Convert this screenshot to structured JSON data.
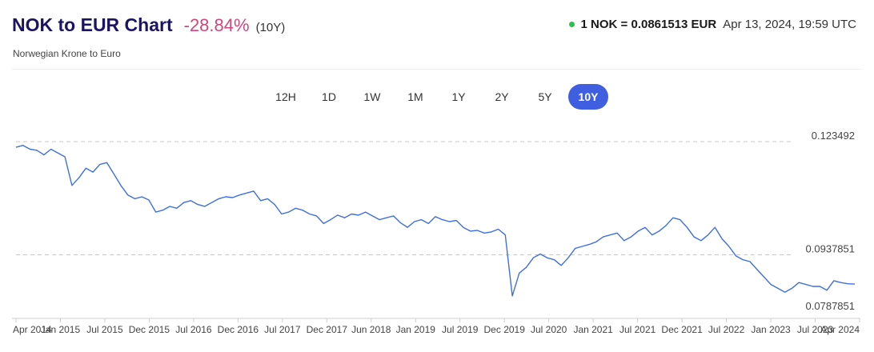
{
  "header": {
    "title": "NOK to EUR Chart",
    "change": "-28.84%",
    "period": "(10Y)",
    "subtitle": "Norwegian Krone to Euro"
  },
  "rate": {
    "value": "1 NOK = 0.0861513 EUR",
    "timestamp": "Apr 13, 2024, 19:59 UTC"
  },
  "ranges": [
    {
      "label": "12H",
      "active": false
    },
    {
      "label": "1D",
      "active": false
    },
    {
      "label": "1W",
      "active": false
    },
    {
      "label": "1M",
      "active": false
    },
    {
      "label": "1Y",
      "active": false
    },
    {
      "label": "2Y",
      "active": false
    },
    {
      "label": "5Y",
      "active": false
    },
    {
      "label": "10Y",
      "active": true
    }
  ],
  "colors": {
    "line": "#3f6fe0",
    "accent": "#3f5fe0",
    "negative": "#c2185b",
    "live_dot": "#2fbf4a"
  },
  "chart_data": {
    "type": "line",
    "title": "NOK to EUR Chart",
    "y_reference_lines": [
      0.123492,
      0.0937851,
      0.0787851
    ],
    "y_labels": [
      "0.123492",
      "0.0937851",
      "0.0787851"
    ],
    "ylim": [
      0.0787851,
      0.123492
    ],
    "x_tick_labels": [
      "Apr 2014",
      "Jan 2015",
      "Jul 2015",
      "Dec 2015",
      "Jul 2016",
      "Dec 2016",
      "Jul 2017",
      "Dec 2017",
      "Jun 2018",
      "Jan 2019",
      "Jul 2019",
      "Dec 2019",
      "Jul 2020",
      "Jan 2021",
      "Jul 2021",
      "Dec 2021",
      "Jul 2022",
      "Jan 2023",
      "Jul 2023",
      "Apr 2024"
    ],
    "xlim": [
      "2014-04",
      "2024-04"
    ],
    "series": [
      {
        "x": [
          "2014-04",
          "2014-05",
          "2014-06",
          "2014-07",
          "2014-08",
          "2014-09",
          "2014-10",
          "2014-11",
          "2014-12",
          "2015-01",
          "2015-02",
          "2015-03",
          "2015-04",
          "2015-05",
          "2015-06",
          "2015-07",
          "2015-08",
          "2015-09",
          "2015-10",
          "2015-11",
          "2015-12",
          "2016-01",
          "2016-02",
          "2016-03",
          "2016-04",
          "2016-05",
          "2016-06",
          "2016-07",
          "2016-08",
          "2016-09",
          "2016-10",
          "2016-11",
          "2016-12",
          "2017-01",
          "2017-02",
          "2017-03",
          "2017-04",
          "2017-05",
          "2017-06",
          "2017-07",
          "2017-08",
          "2017-09",
          "2017-10",
          "2017-11",
          "2017-12",
          "2018-01",
          "2018-02",
          "2018-03",
          "2018-04",
          "2018-05",
          "2018-06",
          "2018-07",
          "2018-08",
          "2018-09",
          "2018-10",
          "2018-11",
          "2018-12",
          "2019-01",
          "2019-02",
          "2019-03",
          "2019-04",
          "2019-05",
          "2019-06",
          "2019-07",
          "2019-08",
          "2019-09",
          "2019-10",
          "2019-11",
          "2019-12",
          "2020-01",
          "2020-02",
          "2020-03",
          "2020-04",
          "2020-05",
          "2020-06",
          "2020-07",
          "2020-08",
          "2020-09",
          "2020-10",
          "2020-11",
          "2020-12",
          "2021-01",
          "2021-02",
          "2021-03",
          "2021-04",
          "2021-05",
          "2021-06",
          "2021-07",
          "2021-08",
          "2021-09",
          "2021-10",
          "2021-11",
          "2021-12",
          "2022-01",
          "2022-02",
          "2022-03",
          "2022-04",
          "2022-05",
          "2022-06",
          "2022-07",
          "2022-08",
          "2022-09",
          "2022-10",
          "2022-11",
          "2022-12",
          "2023-01",
          "2023-02",
          "2023-03",
          "2023-04",
          "2023-05",
          "2023-06",
          "2023-07",
          "2023-08",
          "2023-09",
          "2023-10",
          "2023-11",
          "2023-12",
          "2024-01",
          "2024-02",
          "2024-03",
          "2024-04"
        ],
        "values": [
          0.122,
          0.1225,
          0.1215,
          0.1212,
          0.12,
          0.1215,
          0.1205,
          0.1195,
          0.112,
          0.114,
          0.1165,
          0.1155,
          0.1175,
          0.118,
          0.115,
          0.112,
          0.1095,
          0.1085,
          0.109,
          0.1082,
          0.105,
          0.1055,
          0.1065,
          0.106,
          0.1075,
          0.108,
          0.107,
          0.1065,
          0.1075,
          0.1085,
          0.109,
          0.1088,
          0.1095,
          0.11,
          0.1105,
          0.108,
          0.1085,
          0.107,
          0.1045,
          0.105,
          0.106,
          0.1055,
          0.1045,
          0.104,
          0.102,
          0.103,
          0.1042,
          0.1035,
          0.1045,
          0.1042,
          0.105,
          0.104,
          0.103,
          0.1035,
          0.104,
          0.1022,
          0.101,
          0.1025,
          0.103,
          0.102,
          0.1038,
          0.103,
          0.1025,
          0.1028,
          0.101,
          0.1,
          0.1002,
          0.0995,
          0.0998,
          0.1005,
          0.099,
          0.083,
          0.089,
          0.0905,
          0.093,
          0.094,
          0.093,
          0.0925,
          0.091,
          0.093,
          0.0955,
          0.096,
          0.0965,
          0.0972,
          0.0985,
          0.099,
          0.0995,
          0.0975,
          0.0985,
          0.1,
          0.101,
          0.099,
          0.1,
          0.1015,
          0.1035,
          0.103,
          0.101,
          0.0985,
          0.0975,
          0.099,
          0.101,
          0.098,
          0.096,
          0.0935,
          0.0925,
          0.092,
          0.09,
          0.088,
          0.086,
          0.085,
          0.084,
          0.085,
          0.0865,
          0.086,
          0.0855,
          0.0855,
          0.0845,
          0.087,
          0.0865,
          0.0862,
          0.0861
        ]
      }
    ],
    "grid": false,
    "legend": "none"
  }
}
